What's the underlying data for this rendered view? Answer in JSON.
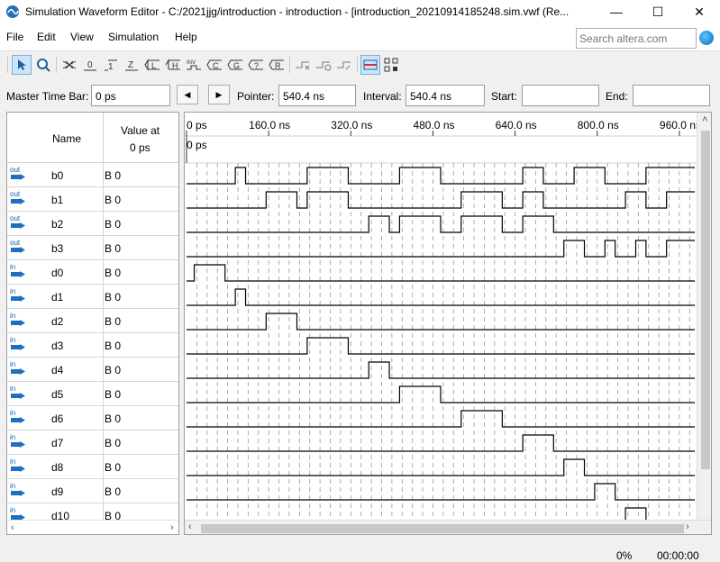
{
  "window": {
    "title": "Simulation Waveform Editor - C:/2021jjg/introduction - introduction - [introduction_20210914185248.sim.vwf (Re...",
    "minimize": "—",
    "maximize": "☐",
    "close": "✕"
  },
  "menu": {
    "items": [
      {
        "label": "File"
      },
      {
        "label": "Edit"
      },
      {
        "label": "View"
      },
      {
        "label": "Simulation"
      },
      {
        "label": "Help"
      }
    ],
    "search_placeholder": "Search altera.com"
  },
  "toolbar": {
    "icons": [
      "pointer-icon",
      "zoom-icon",
      "force-unknown-icon",
      "force-low-icon",
      "force-high-icon",
      "force-high-impedance-icon",
      "force-weak-low-icon",
      "force-weak-high-icon",
      "invert-icon",
      "count-value-icon",
      "clock-icon",
      "arbitrary-value-icon",
      "random-value-icon",
      "snap-to-grid-icon",
      "snap-icon",
      "run-functional-icon",
      "run-timing-icon",
      "grid-icon",
      "node-finder-icon"
    ]
  },
  "timebar": {
    "master_label": "Master Time Bar:",
    "master_value": "0 ps",
    "pointer_label": "Pointer:",
    "pointer_value": "540.4 ns",
    "interval_label": "Interval:",
    "interval_value": "540.4 ns",
    "start_label": "Start:",
    "start_value": "",
    "end_label": "End:",
    "end_value": ""
  },
  "signals_header": {
    "name": "Name",
    "value_line1": "Value at",
    "value_line2": "0 ps"
  },
  "signals": [
    {
      "dir": "out",
      "name": "b0",
      "value": "B 0"
    },
    {
      "dir": "out",
      "name": "b1",
      "value": "B 0"
    },
    {
      "dir": "out",
      "name": "b2",
      "value": "B 0"
    },
    {
      "dir": "out",
      "name": "b3",
      "value": "B 0"
    },
    {
      "dir": "in",
      "name": "d0",
      "value": "B 0"
    },
    {
      "dir": "in",
      "name": "d1",
      "value": "B 0"
    },
    {
      "dir": "in",
      "name": "d2",
      "value": "B 0"
    },
    {
      "dir": "in",
      "name": "d3",
      "value": "B 0"
    },
    {
      "dir": "in",
      "name": "d4",
      "value": "B 0"
    },
    {
      "dir": "in",
      "name": "d5",
      "value": "B 0"
    },
    {
      "dir": "in",
      "name": "d6",
      "value": "B 0"
    },
    {
      "dir": "in",
      "name": "d7",
      "value": "B 0"
    },
    {
      "dir": "in",
      "name": "d8",
      "value": "B 0"
    },
    {
      "dir": "in",
      "name": "d9",
      "value": "B 0"
    },
    {
      "dir": "in",
      "name": "d10",
      "value": "B 0"
    }
  ],
  "timeline": {
    "ticks": [
      "0 ps",
      "160.0 ns",
      "320.0 ns",
      "480.0 ns",
      "640.0 ns",
      "800.0 ns",
      "960.0 ns"
    ],
    "tick_values_ns": [
      0,
      160,
      320,
      480,
      640,
      800,
      960
    ],
    "visible_range_ns": [
      0,
      990
    ],
    "grid_step_ns": 20,
    "master_marker_label": "0 ps",
    "colors": {
      "wave": "#000000",
      "grid": "#9a9a9a",
      "pin": "#1f6fbf"
    }
  },
  "waveforms": {
    "b0": [
      [
        95,
        115
      ],
      [
        235,
        315
      ],
      [
        415,
        495
      ],
      [
        655,
        695
      ],
      [
        755,
        815
      ],
      [
        895,
        995
      ]
    ],
    "b1": [
      [
        155,
        215
      ],
      [
        235,
        315
      ],
      [
        535,
        615
      ],
      [
        655,
        695
      ],
      [
        855,
        895
      ],
      [
        935,
        995
      ]
    ],
    "b2": [
      [
        355,
        395
      ],
      [
        415,
        495
      ],
      [
        535,
        615
      ],
      [
        655,
        715
      ]
    ],
    "b3": [
      [
        735,
        775
      ],
      [
        815,
        835
      ],
      [
        875,
        895
      ],
      [
        935,
        995
      ]
    ],
    "d0": [
      [
        15,
        75
      ]
    ],
    "d1": [
      [
        95,
        115
      ]
    ],
    "d2": [
      [
        155,
        215
      ]
    ],
    "d3": [
      [
        235,
        315
      ]
    ],
    "d4": [
      [
        355,
        395
      ]
    ],
    "d5": [
      [
        415,
        495
      ]
    ],
    "d6": [
      [
        535,
        615
      ]
    ],
    "d7": [
      [
        655,
        715
      ]
    ],
    "d8": [
      [
        735,
        775
      ]
    ],
    "d9": [
      [
        795,
        835
      ]
    ],
    "d10": [
      [
        855,
        895
      ]
    ]
  },
  "status": {
    "progress": "0%",
    "elapsed": "00:00:00"
  }
}
